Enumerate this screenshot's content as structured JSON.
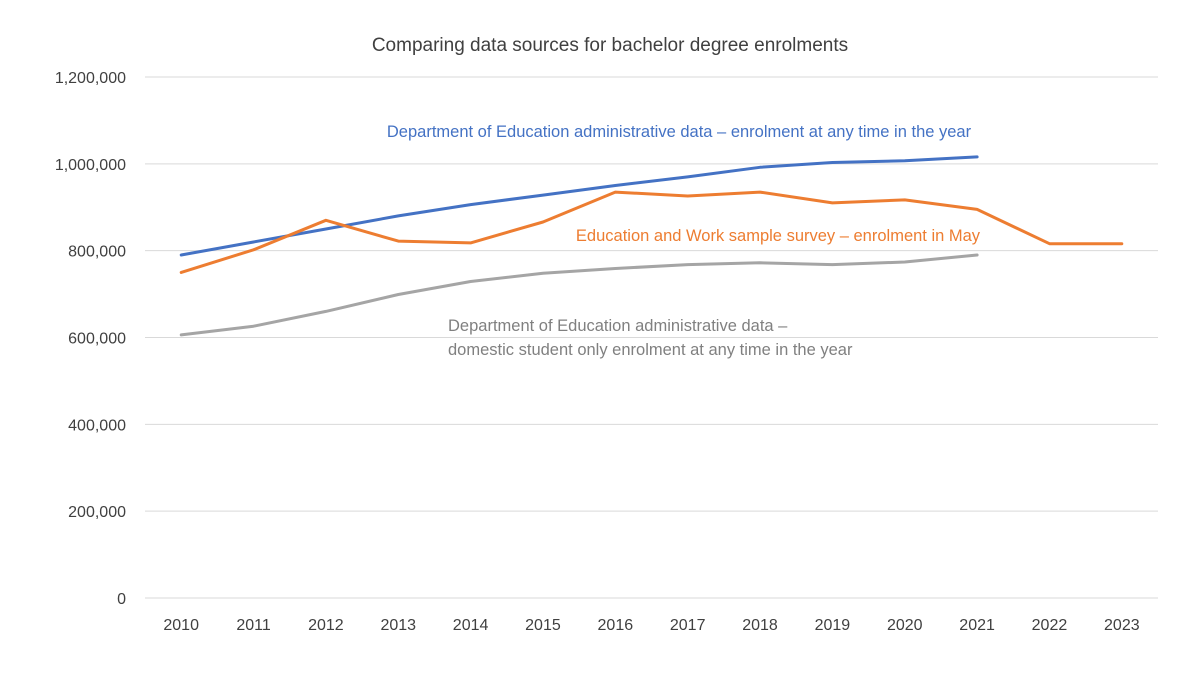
{
  "chart_data": {
    "type": "line",
    "title": "Comparing data sources for bachelor degree enrolments",
    "xlabel": "",
    "ylabel": "",
    "ylim": [
      0,
      1200000
    ],
    "y_ticks": [
      0,
      200000,
      400000,
      600000,
      800000,
      1000000,
      1200000
    ],
    "y_tick_labels": [
      "0",
      "200,000",
      "400,000",
      "600,000",
      "800,000",
      "1,000,000",
      "1,200,000"
    ],
    "grid": true,
    "categories": [
      "2010",
      "2011",
      "2012",
      "2013",
      "2014",
      "2015",
      "2016",
      "2017",
      "2018",
      "2019",
      "2020",
      "2021",
      "2022",
      "2023"
    ],
    "series": [
      {
        "name": "Department of Education administrative data – enrolment at any time in the year",
        "color": "#4472c4",
        "values": [
          790000,
          820000,
          850000,
          880000,
          906000,
          928000,
          950000,
          970000,
          992000,
          1003000,
          1007000,
          1016000,
          null,
          null
        ]
      },
      {
        "name": "Education and Work sample survey – enrolment in May",
        "color": "#ed7d31",
        "values": [
          750000,
          802000,
          870000,
          822000,
          818000,
          866000,
          935000,
          926000,
          935000,
          910000,
          917000,
          895000,
          816000,
          816000
        ]
      },
      {
        "name": "Department of Education administrative data – domestic student only enrolment at any time in the year",
        "color": "#a5a5a5",
        "values": [
          606000,
          626000,
          660000,
          699000,
          729000,
          748000,
          759000,
          768000,
          772000,
          768000,
          774000,
          790000,
          null,
          null
        ]
      }
    ],
    "annotations": [
      {
        "series": 0,
        "color": "#4472c4",
        "lines": [
          "Department of Education administrative data – enrolment at any time in the year"
        ]
      },
      {
        "series": 1,
        "color": "#ed7d31",
        "lines": [
          "Education and Work sample survey – enrolment in May"
        ]
      },
      {
        "series": 2,
        "color": "#808080",
        "lines": [
          "Department of Education administrative data –",
          "domestic student only enrolment at any time in the year"
        ]
      }
    ]
  }
}
